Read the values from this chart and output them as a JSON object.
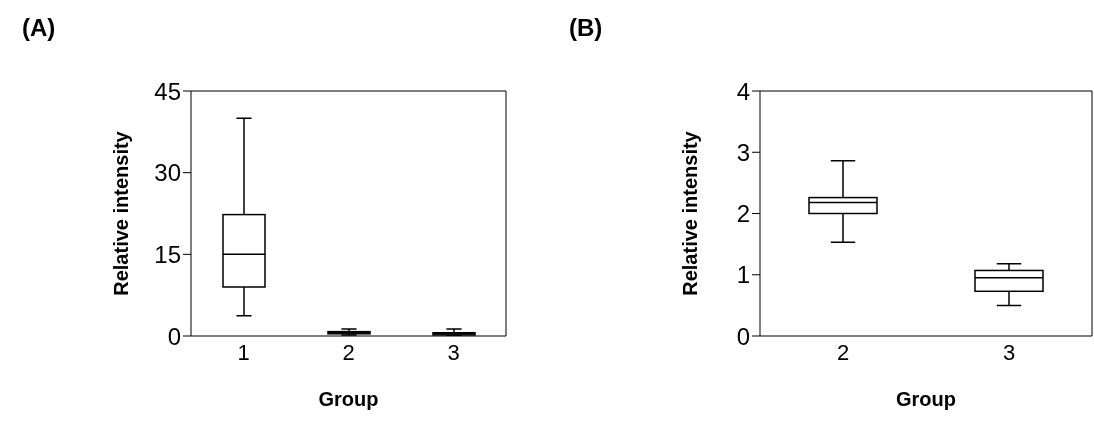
{
  "chart_data": [
    {
      "type": "box",
      "title": "(A)",
      "xlabel": "Group",
      "ylabel": "Relative intensity",
      "categories": [
        "1",
        "2",
        "3"
      ],
      "ylim": [
        0,
        45
      ],
      "yticks": [
        0,
        15,
        30,
        45
      ],
      "boxes": [
        {
          "low": 3.7,
          "q1": 9,
          "median": 15,
          "q3": 22.3,
          "high": 40
        },
        {
          "low": 0.2,
          "q1": 0.4,
          "median": 0.6,
          "q3": 0.8,
          "high": 1.3
        },
        {
          "low": 0.1,
          "q1": 0.2,
          "median": 0.4,
          "q3": 0.6,
          "high": 1.3
        }
      ]
    },
    {
      "type": "box",
      "title": "(B)",
      "xlabel": "Group",
      "ylabel": "Relative intensity",
      "categories": [
        "2",
        "3"
      ],
      "ylim": [
        0,
        4
      ],
      "yticks": [
        0,
        1,
        2,
        3,
        4
      ],
      "boxes": [
        {
          "low": 1.53,
          "q1": 2.0,
          "median": 2.18,
          "q3": 2.26,
          "high": 2.86
        },
        {
          "low": 0.5,
          "q1": 0.73,
          "median": 0.95,
          "q3": 1.07,
          "high": 1.18
        }
      ]
    }
  ]
}
